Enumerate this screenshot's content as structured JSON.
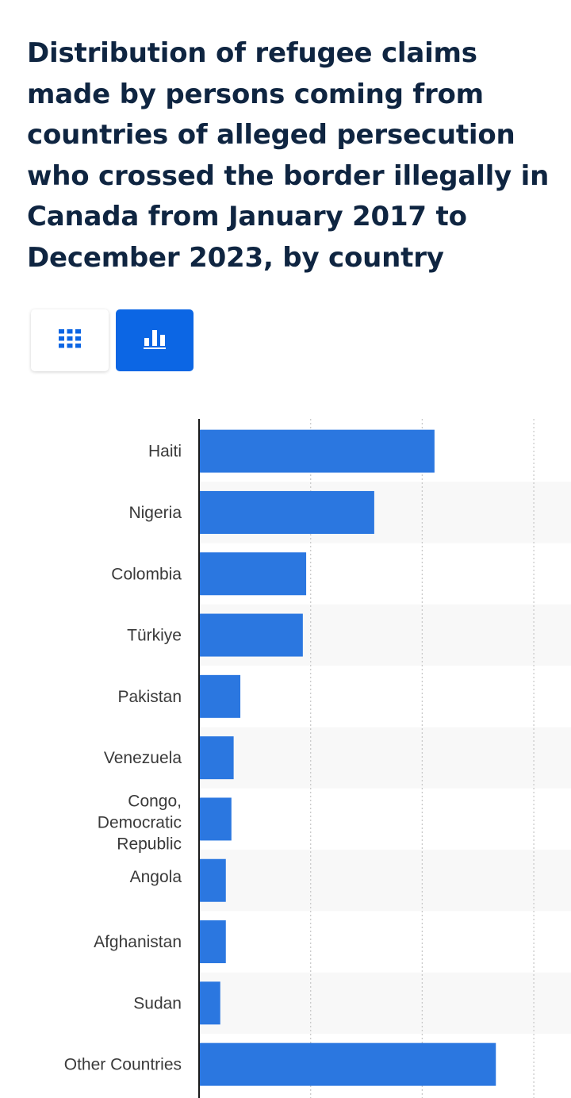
{
  "title": "Distribution of refugee claims made by persons coming from countries of alleged persecution who crossed the border illegally in Canada from January 2017 to December 2023, by country",
  "view_toggle": {
    "table_icon": "grid-icon",
    "chart_icon": "bar-chart-icon",
    "active": "chart",
    "active_color": "#0c66e4"
  },
  "chart_data": {
    "type": "bar",
    "orientation": "horizontal",
    "bar_color": "#2b77e0",
    "categories": [
      "Haiti",
      "Nigeria",
      "Colombia",
      "Türkiye",
      "Pakistan",
      "Venezuela",
      "Congo, Democratic Republic",
      "Angola",
      "Afghanistan",
      "Sudan",
      "Other Countries"
    ],
    "values": [
      21.1,
      15.7,
      9.6,
      9.3,
      3.7,
      3.1,
      2.9,
      2.4,
      2.4,
      1.9,
      26.6
    ],
    "xlim": [
      0,
      30
    ],
    "grid": true,
    "legend": "none"
  }
}
